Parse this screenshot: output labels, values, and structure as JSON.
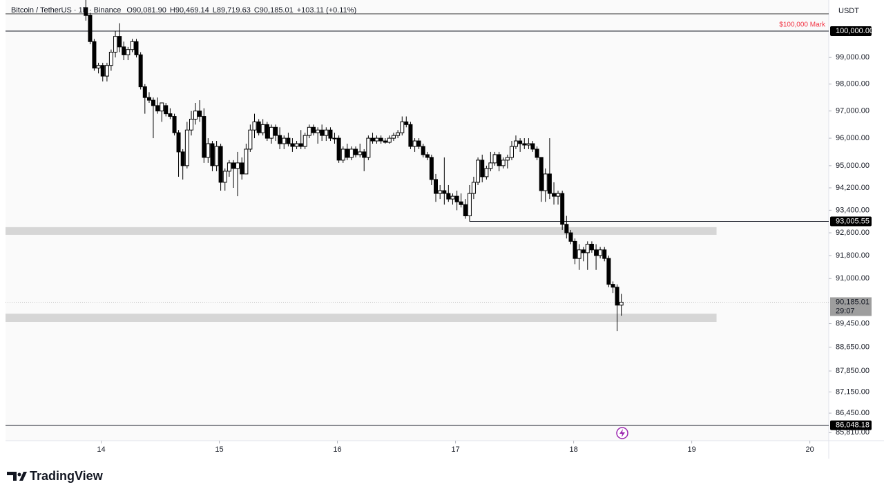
{
  "header": {
    "symbol": "Bitcoin / TetherUS · 1h · Binance",
    "ohlc": [
      "O90,081.90",
      "H90,469.14",
      "L89,719.63",
      "C90,185.01"
    ],
    "change": "+103.11 (+0.11%)"
  },
  "currency": "USDT",
  "brand": "TradingView",
  "chart_data": {
    "type": "candlestick",
    "x": [
      13.87,
      13.906,
      13.941,
      13.977,
      14.013,
      14.049,
      14.084,
      14.12,
      14.156,
      14.191,
      14.227,
      14.263,
      14.298,
      14.334,
      14.37,
      14.406,
      14.441,
      14.477,
      14.513,
      14.548,
      14.584,
      14.62,
      14.655,
      14.691,
      14.727,
      14.763,
      14.798,
      14.834,
      14.87,
      14.905,
      14.941,
      14.977,
      15.012,
      15.048,
      15.084,
      15.12,
      15.155,
      15.191,
      15.227,
      15.262,
      15.298,
      15.334,
      15.369,
      15.405,
      15.441,
      15.477,
      15.512,
      15.548,
      15.584,
      15.619,
      15.655,
      15.691,
      15.726,
      15.762,
      15.798,
      15.834,
      15.869,
      15.905,
      15.941,
      15.976,
      16.012,
      16.048,
      16.083,
      16.119,
      16.155,
      16.191,
      16.226,
      16.262,
      16.298,
      16.333,
      16.369,
      16.405,
      16.44,
      16.476,
      16.512,
      16.548,
      16.583,
      16.619,
      16.655,
      16.69,
      16.726,
      16.762,
      16.797,
      16.833,
      16.869,
      16.905,
      16.94,
      16.976,
      17.012,
      17.047,
      17.083,
      17.119,
      17.154,
      17.19,
      17.226,
      17.262,
      17.297,
      17.333,
      17.369,
      17.404,
      17.44,
      17.476,
      17.511,
      17.547,
      17.583,
      17.619,
      17.654,
      17.69,
      17.726,
      17.761,
      17.797,
      17.833,
      17.868,
      17.904,
      17.94,
      17.976,
      18.011,
      18.047,
      18.083,
      18.118,
      18.154,
      18.19,
      18.225,
      18.261,
      18.297,
      18.333,
      18.368,
      18.404
    ],
    "open": [
      100900,
      100600,
      99600,
      98600,
      98700,
      98300,
      98700,
      99200,
      99800,
      99400,
      99100,
      99300,
      99600,
      99100,
      97900,
      97500,
      97400,
      97200,
      97000,
      97200,
      96900,
      96800,
      96200,
      95500,
      95000,
      96300,
      96700,
      97000,
      96800,
      95300,
      95800,
      95000,
      95700,
      94400,
      94800,
      95100,
      94900,
      95100,
      94700,
      95600,
      96300,
      96600,
      96200,
      96500,
      96000,
      96400,
      96100,
      95800,
      96000,
      95800,
      95700,
      95800,
      95700,
      96100,
      96400,
      96200,
      96300,
      96100,
      96300,
      96000,
      96000,
      95200,
      95600,
      95300,
      95600,
      95400,
      95500,
      95300,
      96000,
      95900,
      96000,
      95900,
      95850,
      96000,
      96100,
      96200,
      96600,
      96500,
      95700,
      95900,
      95700,
      95400,
      95300,
      94500,
      94000,
      94100,
      94000,
      93800,
      93900,
      93700,
      93600,
      93200,
      94000,
      94400,
      95200,
      94600,
      94900,
      95100,
      95400,
      95000,
      95200,
      95300,
      95700,
      95900,
      95800,
      95750,
      95800,
      95600,
      95300,
      94100,
      94700,
      94000,
      93900,
      94000,
      92900,
      92600,
      92300,
      91700,
      92000,
      91900,
      92200,
      92000,
      91800,
      92000,
      91700,
      90800,
      90700,
      90081.9
    ],
    "high": [
      101200,
      100700,
      99700,
      98800,
      98800,
      98800,
      99300,
      100000,
      100300,
      99600,
      99400,
      99700,
      99700,
      99200,
      98000,
      97700,
      97500,
      97500,
      97300,
      97300,
      97100,
      96900,
      96300,
      95600,
      96600,
      97000,
      97300,
      97400,
      97100,
      96000,
      95900,
      95900,
      95800,
      94900,
      95200,
      95200,
      95500,
      95300,
      95800,
      96500,
      96900,
      96700,
      96700,
      96600,
      96500,
      96500,
      96400,
      96100,
      96200,
      96000,
      95900,
      96300,
      96200,
      96500,
      96500,
      96400,
      96500,
      96400,
      96400,
      96200,
      96100,
      95700,
      95800,
      95700,
      95700,
      95800,
      95600,
      96100,
      96200,
      96100,
      96100,
      96000,
      96100,
      96200,
      96300,
      96800,
      96800,
      96600,
      96000,
      96000,
      95800,
      95500,
      95400,
      94700,
      94300,
      95300,
      94300,
      94000,
      94100,
      94000,
      93800,
      94300,
      94600,
      95300,
      95400,
      95000,
      95500,
      95500,
      95500,
      95300,
      95400,
      95900,
      96100,
      96000,
      96000,
      96000,
      95900,
      95700,
      95300,
      94900,
      96000,
      94400,
      94100,
      94100,
      93200,
      92700,
      92400,
      92200,
      92100,
      92300,
      92300,
      92200,
      92100,
      92100,
      91800,
      90900,
      90800,
      90469.14
    ],
    "low": [
      100400,
      99500,
      98500,
      98400,
      98100,
      98100,
      98500,
      99000,
      99200,
      98900,
      98900,
      99200,
      99000,
      97800,
      96900,
      97300,
      96000,
      96900,
      96600,
      96800,
      96700,
      96100,
      94600,
      94500,
      94900,
      96100,
      96500,
      96600,
      95100,
      95100,
      94800,
      94800,
      94100,
      94100,
      94600,
      94200,
      93900,
      94500,
      94700,
      95500,
      96000,
      96100,
      96100,
      95900,
      95800,
      95900,
      95600,
      95600,
      95700,
      95500,
      95600,
      95600,
      95600,
      96000,
      96100,
      95800,
      95900,
      95900,
      95900,
      95800,
      95100,
      95100,
      95200,
      95200,
      95300,
      95300,
      94800,
      95200,
      95800,
      95800,
      95800,
      95800,
      95800,
      95900,
      96000,
      96100,
      96400,
      95600,
      95500,
      95600,
      95300,
      95200,
      94300,
      93700,
      93800,
      93600,
      93700,
      93600,
      93400,
      93500,
      93100,
      93000,
      93800,
      94300,
      94400,
      94500,
      94800,
      95000,
      94800,
      94900,
      94900,
      95200,
      95600,
      95500,
      95600,
      95600,
      95500,
      95200,
      93700,
      93700,
      93800,
      93600,
      93600,
      92700,
      92400,
      92200,
      91500,
      91300,
      91600,
      91300,
      91900,
      91300,
      91700,
      91600,
      90700,
      90500,
      89200,
      89719.63
    ],
    "close": [
      100600,
      99600,
      98600,
      98700,
      98300,
      98700,
      99200,
      99800,
      99400,
      99100,
      99300,
      99600,
      99100,
      97900,
      97500,
      97400,
      97200,
      97000,
      97300,
      96900,
      96800,
      96200,
      95500,
      95000,
      96300,
      96700,
      97000,
      96800,
      95300,
      95800,
      95000,
      95700,
      94400,
      94800,
      95100,
      94900,
      95100,
      94700,
      95600,
      96300,
      96600,
      96200,
      96500,
      96000,
      96400,
      96100,
      95800,
      96000,
      95800,
      95700,
      95800,
      95700,
      96100,
      96400,
      96200,
      96300,
      96100,
      96300,
      96000,
      96000,
      95200,
      95600,
      95300,
      95600,
      95400,
      95500,
      95300,
      96000,
      95900,
      96000,
      95900,
      95850,
      96000,
      96100,
      96200,
      96600,
      96500,
      95700,
      95900,
      95700,
      95400,
      95300,
      94500,
      94000,
      94100,
      94000,
      93800,
      93900,
      93700,
      93600,
      93200,
      94000,
      94400,
      95200,
      94600,
      94900,
      95100,
      95400,
      95000,
      95200,
      95300,
      95700,
      95900,
      95800,
      95750,
      95800,
      95600,
      95300,
      94100,
      94700,
      94000,
      93900,
      94000,
      92900,
      92600,
      92300,
      91700,
      92000,
      91900,
      92200,
      92000,
      91800,
      92000,
      91700,
      90800,
      90700,
      90081.9,
      90185.01
    ],
    "up_color": "#ffffff",
    "down_color": "#000000",
    "wick_color": "#000000",
    "xlim": [
      13.19,
      20.16
    ],
    "xticks": [
      14,
      15,
      16,
      17,
      18,
      19,
      20
    ],
    "ylim": [
      85547,
      101192
    ],
    "log_scale": true,
    "yticks": [
      {
        "value": 99000,
        "label": "99,000.00"
      },
      {
        "value": 98000,
        "label": "98,000.00"
      },
      {
        "value": 97000,
        "label": "97,000.00"
      },
      {
        "value": 96000,
        "label": "96,000.00"
      },
      {
        "value": 95000,
        "label": "95,000.00"
      },
      {
        "value": 94200,
        "label": "94,200.00"
      },
      {
        "value": 93400,
        "label": "93,400.00"
      },
      {
        "value": 92600,
        "label": "92,600.00"
      },
      {
        "value": 91800,
        "label": "91,800.00"
      },
      {
        "value": 91000,
        "label": "91,000.00"
      },
      {
        "value": 89450,
        "label": "89,450.00"
      },
      {
        "value": 88650,
        "label": "88,650.00"
      },
      {
        "value": 87850,
        "label": "87,850.00"
      },
      {
        "value": 87150,
        "label": "87,150.00"
      },
      {
        "value": 86450,
        "label": "86,450.00"
      },
      {
        "value": 85810,
        "label": "85,810.00"
      }
    ],
    "zones": [
      {
        "x": [
          13.19,
          19.21
        ],
        "y": [
          92530,
          92800
        ],
        "color": "#d6d6d6"
      },
      {
        "x": [
          13.19,
          19.21
        ],
        "y": [
          89510,
          89790
        ],
        "color": "#d6d6d6"
      }
    ],
    "price_lines": [
      {
        "value": 100000,
        "label": "100,000.00",
        "text": "$100,000 Mark",
        "text_color": "#f23645"
      },
      {
        "value": 93005.55,
        "label": "93,005.55",
        "x_start": 17.12
      },
      {
        "value": 86048.18,
        "label": "86,048.18"
      }
    ],
    "last_price": {
      "value": 90185.01,
      "label": "90,185.01",
      "countdown": "29:07"
    }
  }
}
